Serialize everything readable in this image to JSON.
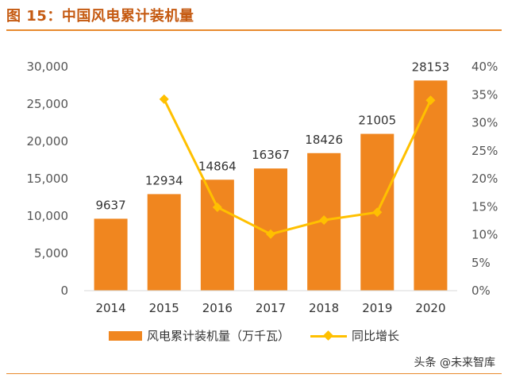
{
  "header": {
    "title": "图 15：中国风电累计装机量"
  },
  "watermark": "头条 @未来智库",
  "colors": {
    "bar": "#f0861f",
    "line": "#ffc000",
    "accent": "#c55a11"
  },
  "legend": {
    "bar_label": "风电累计装机量（万千瓦）",
    "line_label": "同比增长"
  },
  "chart_data": {
    "type": "bar",
    "categories": [
      "2014",
      "2015",
      "2016",
      "2017",
      "2018",
      "2019",
      "2020"
    ],
    "series": [
      {
        "name": "风电累计装机量（万千瓦）",
        "type": "bar",
        "axis": "left",
        "values": [
          9637,
          12934,
          14864,
          16367,
          18426,
          21005,
          28153
        ],
        "labels": [
          "9637",
          "12934",
          "14864",
          "16367",
          "18426",
          "21005",
          "28153"
        ]
      },
      {
        "name": "同比增长",
        "type": "line",
        "axis": "right",
        "values": [
          null,
          34.2,
          14.9,
          10.1,
          12.6,
          14.0,
          34.0
        ]
      }
    ],
    "y_left": {
      "lim": [
        0,
        30000
      ],
      "ticks": [
        "0",
        "5,000",
        "10,000",
        "15,000",
        "20,000",
        "25,000",
        "30,000"
      ],
      "tick_values": [
        0,
        5000,
        10000,
        15000,
        20000,
        25000,
        30000
      ]
    },
    "y_right": {
      "lim": [
        0,
        40
      ],
      "ticks": [
        "0%",
        "5%",
        "10%",
        "15%",
        "20%",
        "25%",
        "30%",
        "35%",
        "40%"
      ],
      "tick_values": [
        0,
        5,
        10,
        15,
        20,
        25,
        30,
        35,
        40
      ]
    },
    "grid": false,
    "legend_position": "bottom"
  }
}
